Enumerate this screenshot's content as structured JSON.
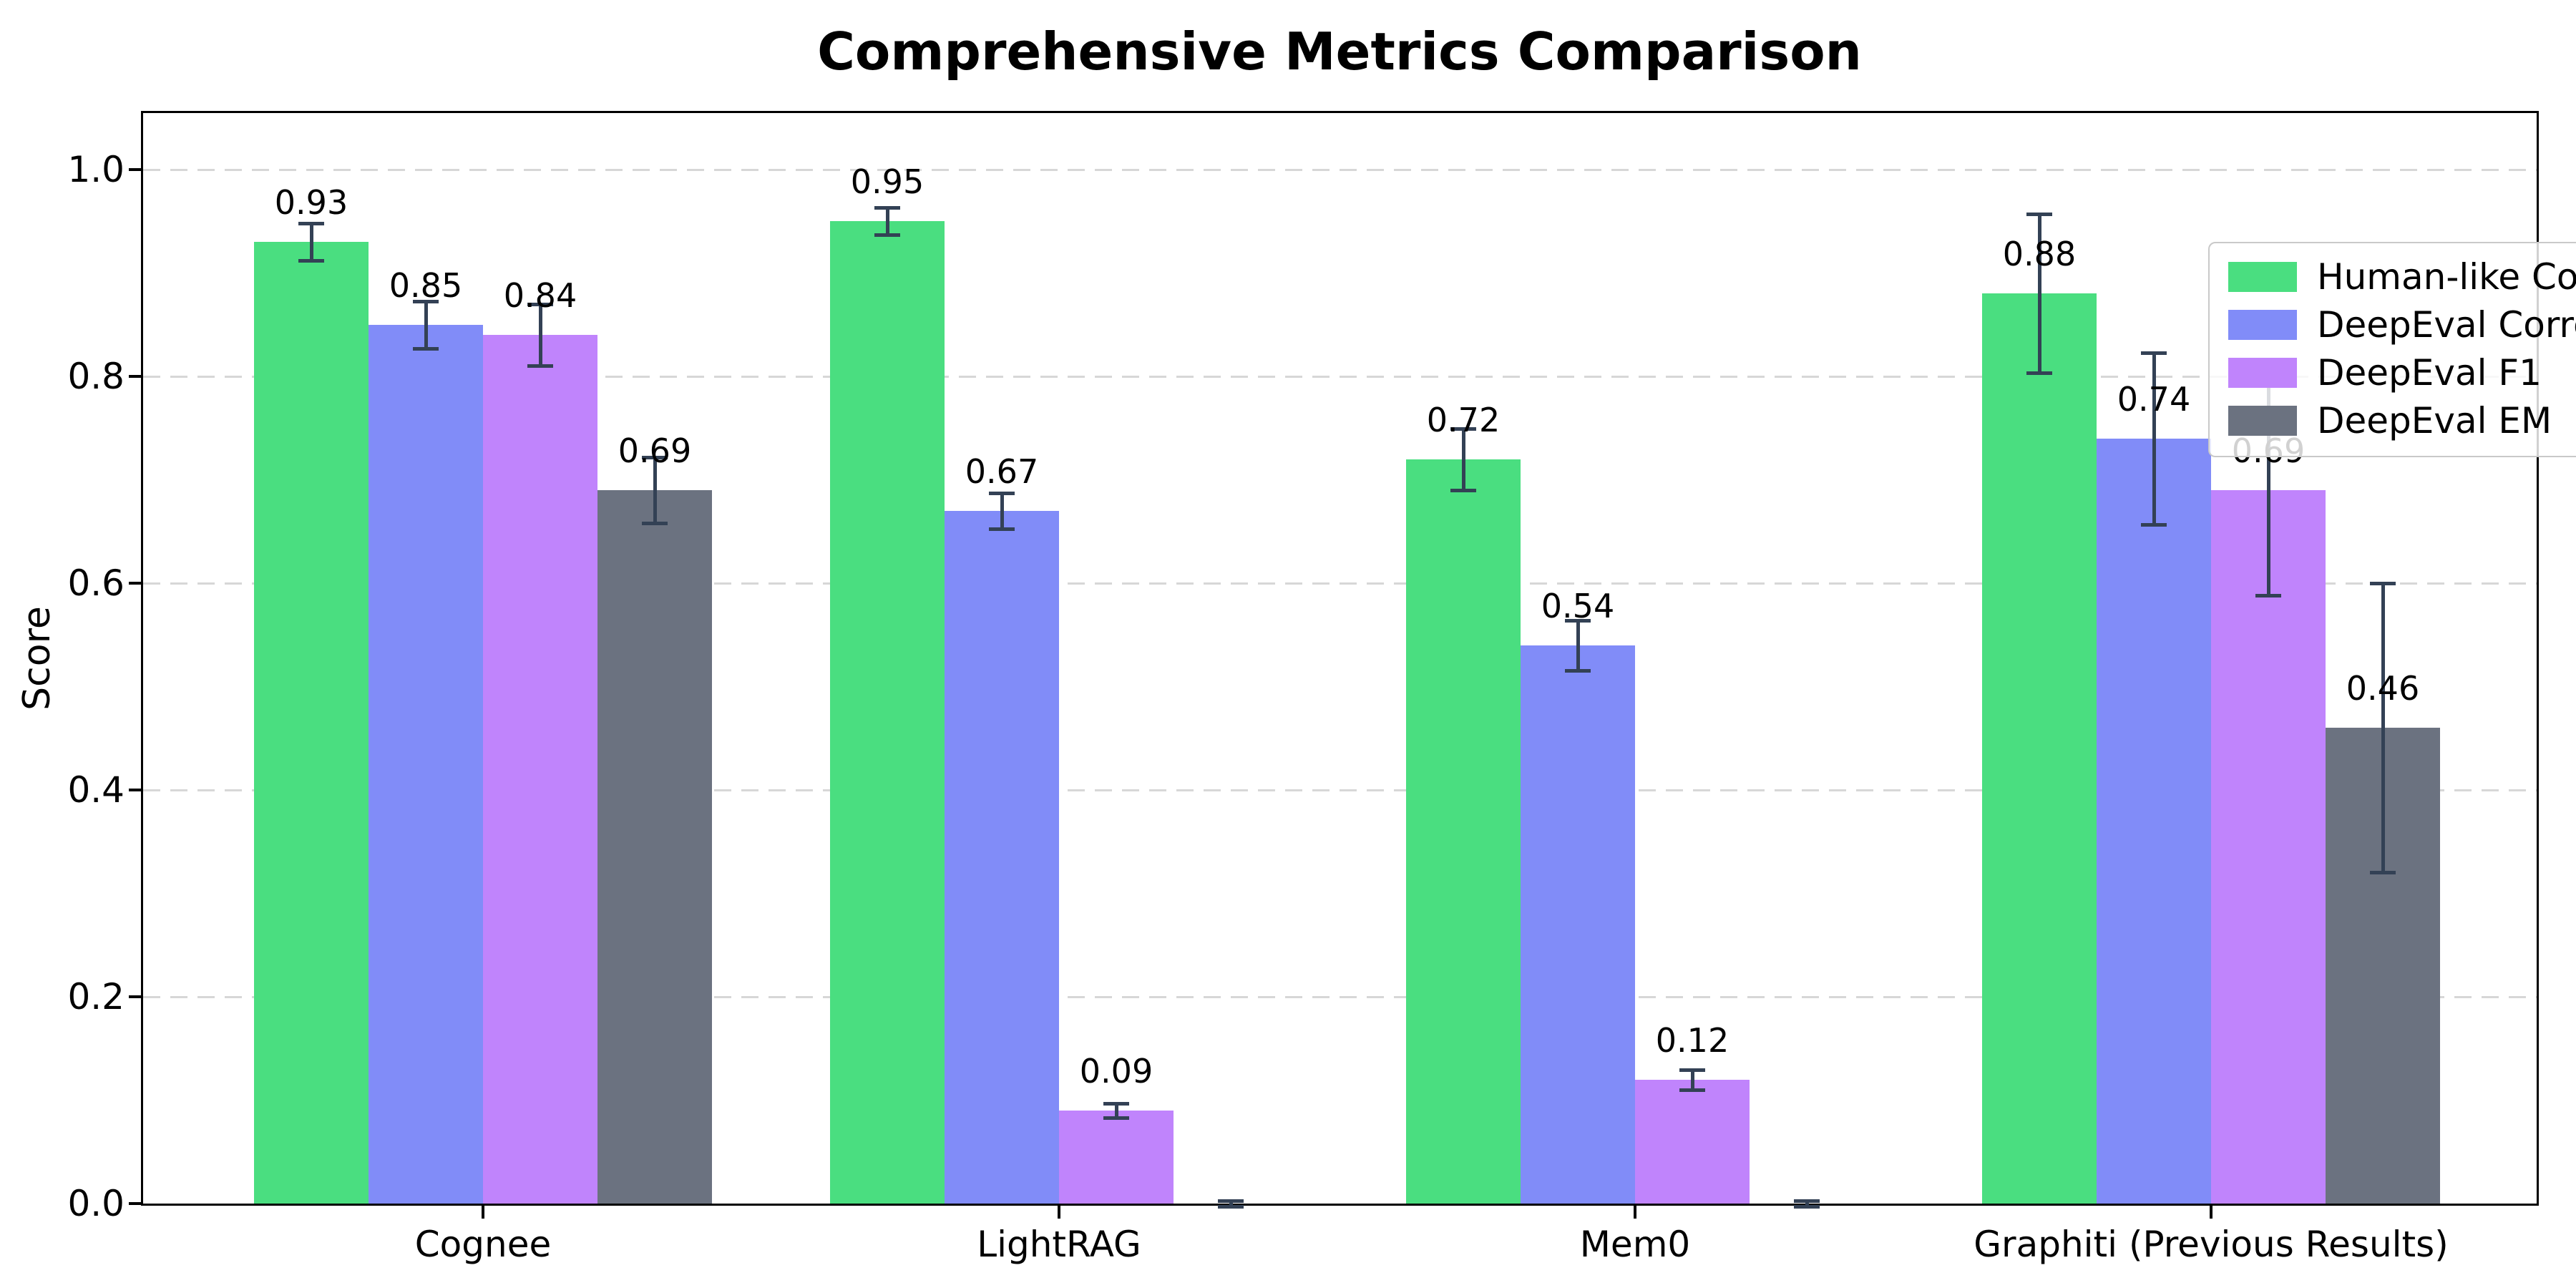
{
  "chart_data": {
    "type": "bar",
    "title": "Comprehensive Metrics Comparison",
    "ylabel": "Score",
    "xlabel": "",
    "categories": [
      "Cognee",
      "LightRAG",
      "Mem0",
      "Graphiti (Previous Results)"
    ],
    "series": [
      {
        "name": "Human-like Correctness",
        "color": "#4ade80",
        "values": [
          0.93,
          0.95,
          0.72,
          0.88
        ],
        "errors": [
          0.018,
          0.013,
          0.03,
          0.077
        ],
        "labels": [
          "0.93",
          "0.95",
          "0.72",
          "0.88"
        ]
      },
      {
        "name": "DeepEval Correctness",
        "color": "#818cf8",
        "values": [
          0.85,
          0.67,
          0.54,
          0.74
        ],
        "errors": [
          0.023,
          0.017,
          0.024,
          0.083
        ],
        "labels": [
          "0.85",
          "0.67",
          "0.54",
          "0.74"
        ]
      },
      {
        "name": "DeepEval F1",
        "color": "#c084fc",
        "values": [
          0.84,
          0.09,
          0.12,
          0.69
        ],
        "errors": [
          0.03,
          0.007,
          0.01,
          0.102
        ],
        "labels": [
          "0.84",
          "0.09",
          "0.12",
          "0.69"
        ]
      },
      {
        "name": "DeepEval EM",
        "color": "#6b7280",
        "values": [
          0.69,
          0.0,
          0.0,
          0.46
        ],
        "errors": [
          0.032,
          0.003,
          0.003,
          0.14
        ],
        "labels": [
          "0.69",
          null,
          null,
          "0.46"
        ]
      }
    ],
    "yticks": [
      "0.0",
      "0.2",
      "0.4",
      "0.6",
      "0.8",
      "1.0"
    ],
    "ytick_values": [
      0,
      0.2,
      0.4,
      0.6,
      0.8,
      1.0
    ],
    "ylim": [
      0,
      1.05
    ],
    "grid": "horizontal-dashed",
    "legend_position": "upper-right",
    "error_color": "#334155"
  }
}
